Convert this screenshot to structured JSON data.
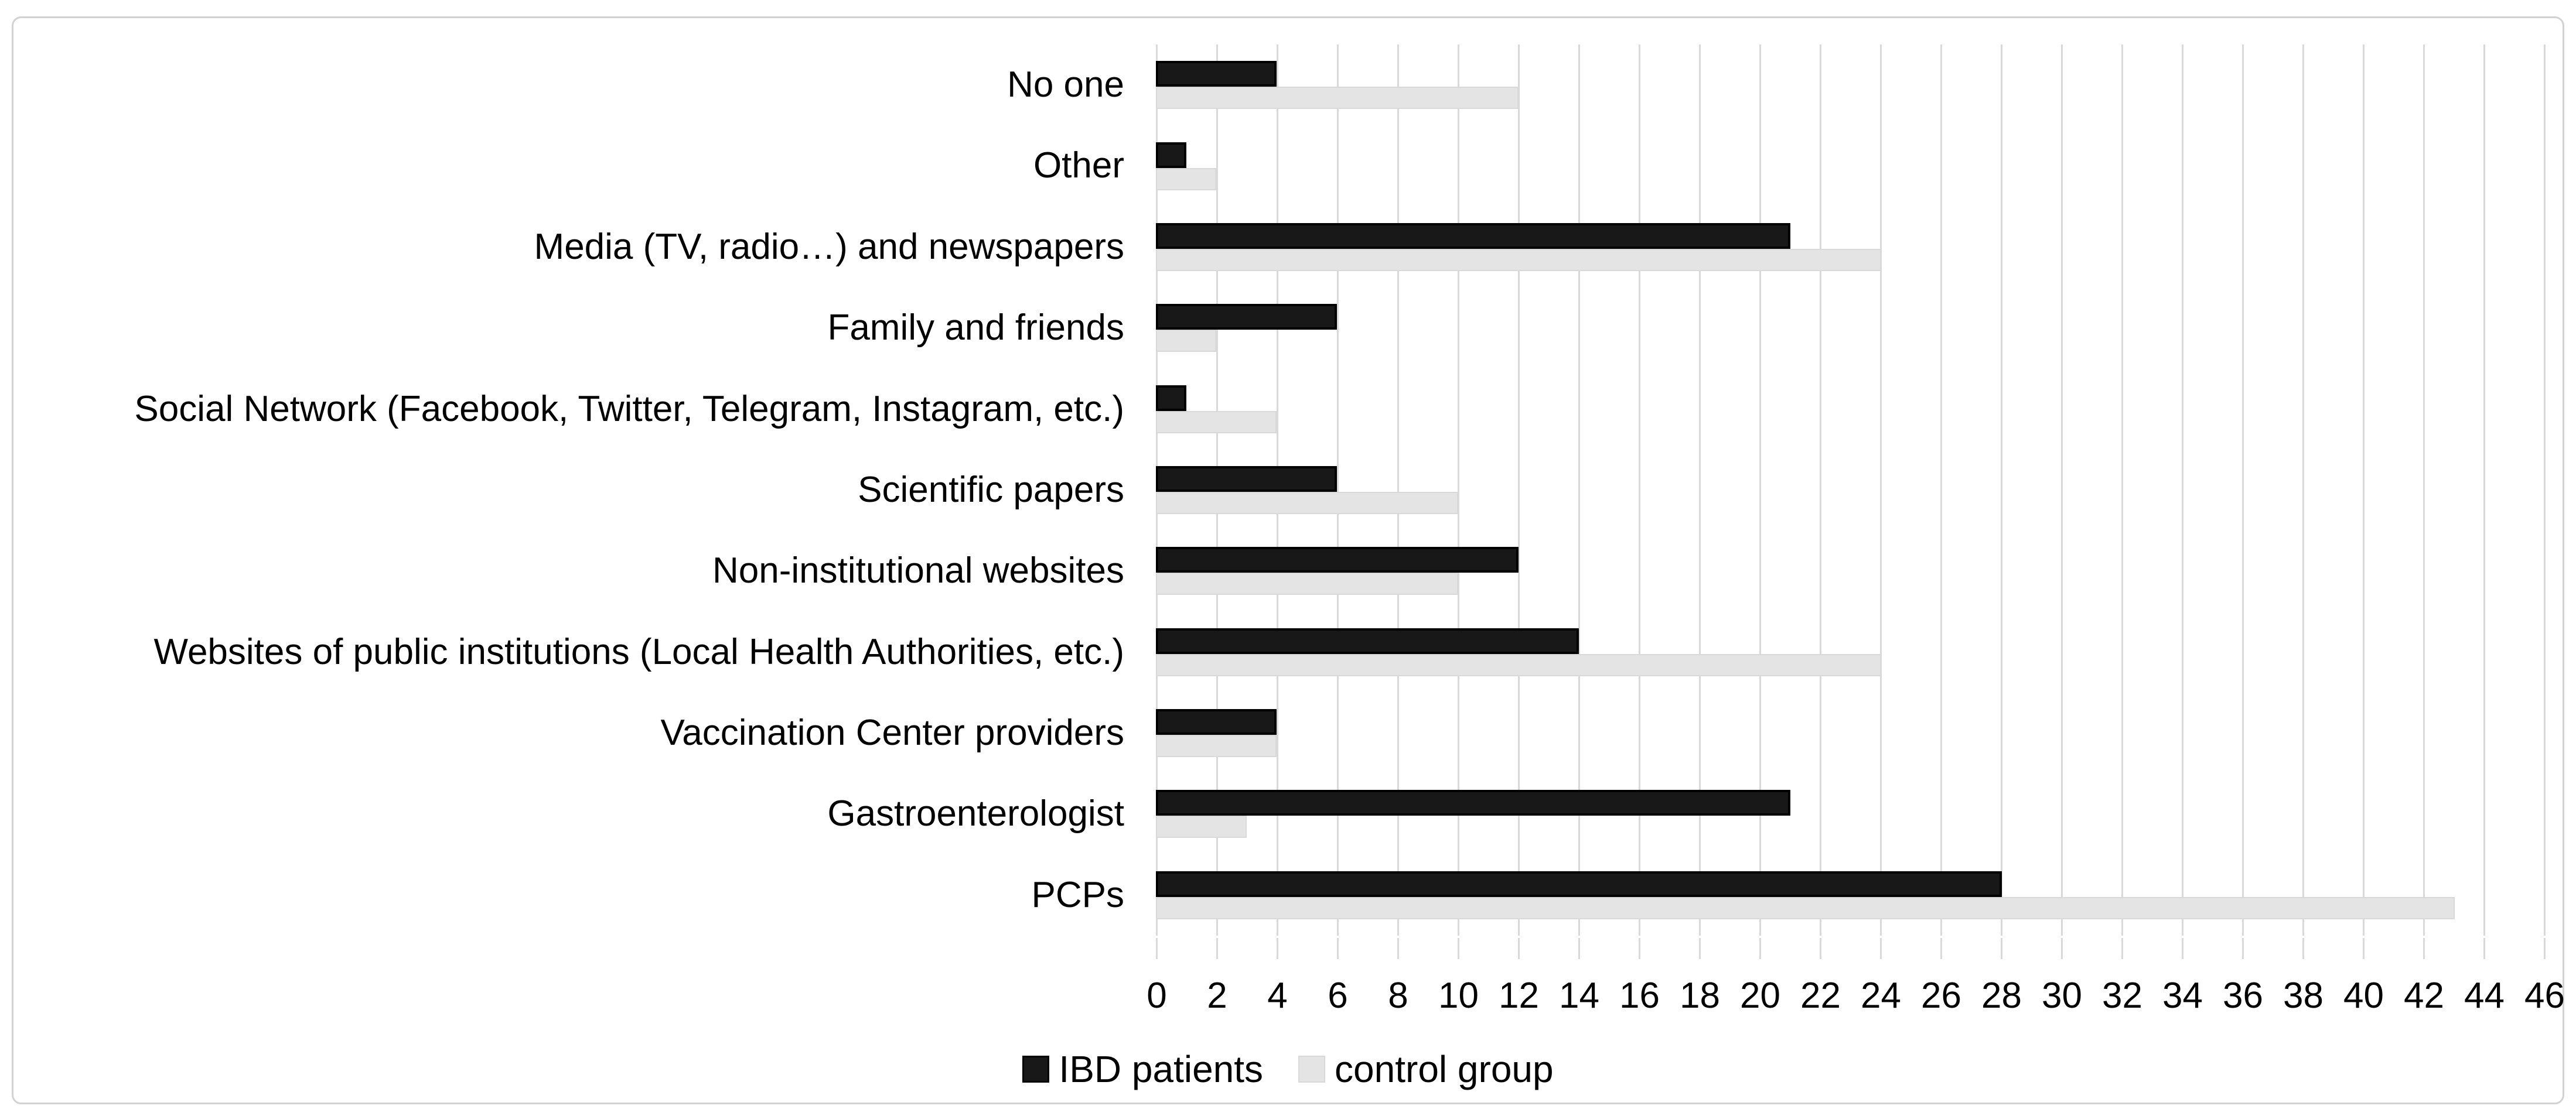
{
  "chart_data": {
    "type": "bar",
    "orientation": "horizontal",
    "title": "",
    "xlabel": "",
    "ylabel": "",
    "categories": [
      "No one",
      "Other",
      "Media (TV, radio…) and newspapers",
      "Family and friends",
      "Social Network (Facebook, Twitter, Telegram, Instagram, etc.)",
      "Scientific papers",
      "Non-institutional websites",
      "Websites of public institutions (Local Health Authorities, etc.)",
      "Vaccination Center providers",
      "Gastroenterologist",
      "PCPs"
    ],
    "series": [
      {
        "name": "IBD patients",
        "color": "#181818",
        "values": [
          4,
          1,
          21,
          6,
          1,
          6,
          12,
          14,
          4,
          21,
          28
        ]
      },
      {
        "name": "control group",
        "color": "#e4e4e4",
        "values": [
          12,
          2,
          24,
          2,
          4,
          10,
          10,
          24,
          4,
          3,
          43
        ]
      }
    ],
    "xlim": [
      0,
      46
    ],
    "x_ticks": [
      0,
      2,
      4,
      6,
      8,
      10,
      12,
      14,
      16,
      18,
      20,
      22,
      24,
      26,
      28,
      30,
      32,
      34,
      36,
      38,
      40,
      42,
      44,
      46
    ],
    "grid": "vertical",
    "gridline_color": "#d9d9d9",
    "frame_border_color": "#d2d2d2",
    "background": "#ffffff",
    "legend_position": "bottom-center"
  }
}
